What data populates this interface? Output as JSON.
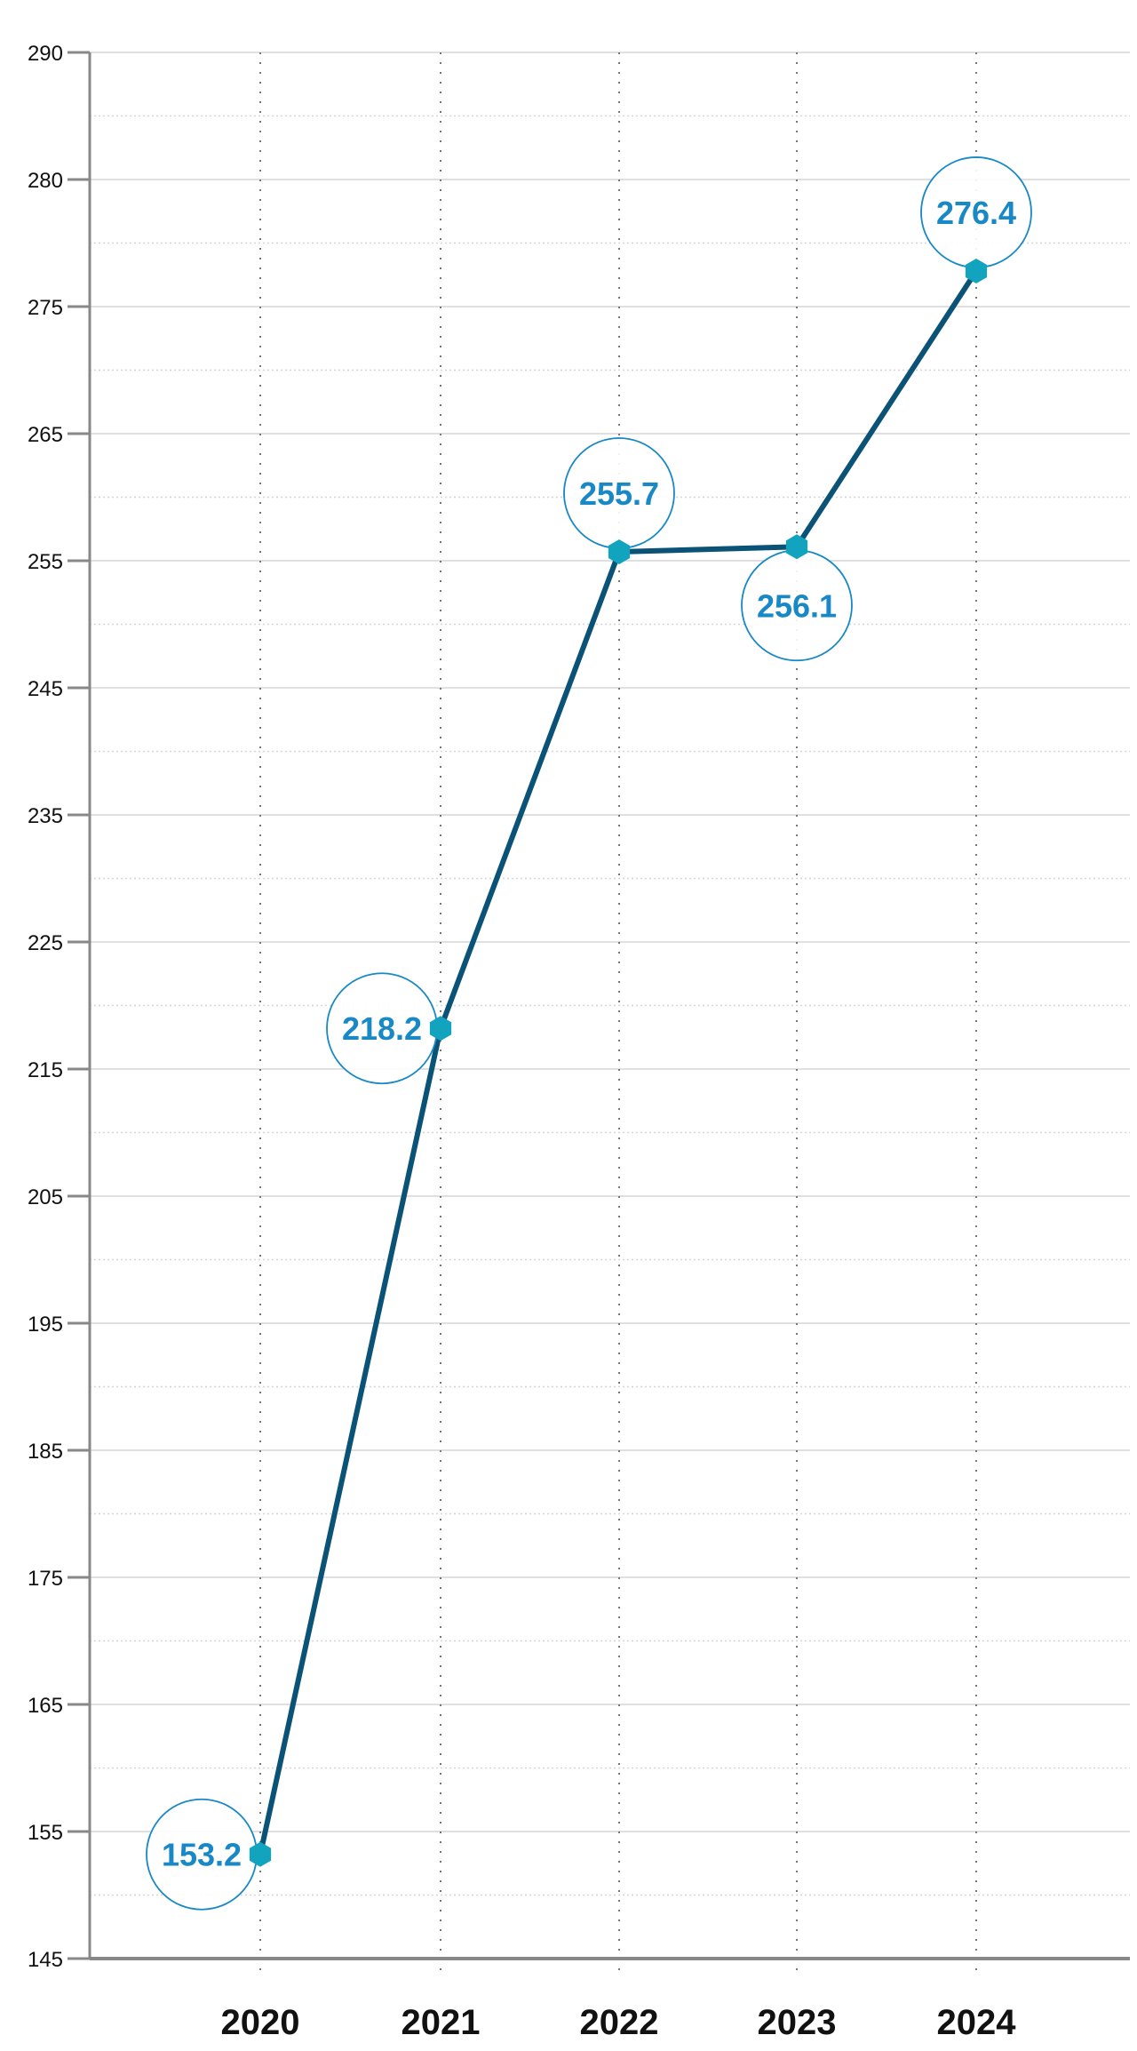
{
  "chart_data": {
    "type": "line",
    "title": "",
    "xlabel": "",
    "ylabel": "",
    "categories": [
      "2020",
      "2021",
      "2022",
      "2023",
      "2024"
    ],
    "values": [
      153.2,
      218.2,
      255.7,
      256.1,
      276.4
    ],
    "data_labels": [
      "153.2",
      "218.2",
      "255.7",
      "256.1",
      "276.4"
    ],
    "label_positions": [
      "left",
      "left",
      "top",
      "bottom",
      "top"
    ],
    "y_ticks": [
      "290",
      "280",
      "275",
      "265",
      "255",
      "245",
      "235",
      "225",
      "215",
      "205",
      "195",
      "185",
      "175",
      "165",
      "155",
      "145"
    ],
    "ylim": [
      145,
      290
    ],
    "grid": true,
    "legend": "none",
    "marker": "hexagon",
    "colors": {
      "line": "#0a5377",
      "marker": "#12a3bf",
      "label_text": "#1888c6",
      "label_circle": "#1888c6",
      "axis": "#888888",
      "grid": "#d6d6d6"
    }
  }
}
